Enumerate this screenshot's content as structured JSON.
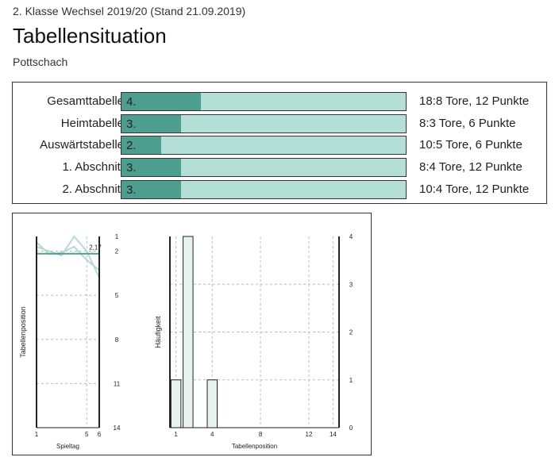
{
  "header": {
    "subtitle": "2. Klasse Wechsel 2019/20 (Stand 21.09.2019)",
    "title": "Tabellensituation",
    "team": "Pottschach"
  },
  "standings": [
    {
      "label": "Gesamttabelle",
      "position": "4.",
      "fill_fraction": 0.28,
      "stats": "18:8 Tore, 12 Punkte"
    },
    {
      "label": "Heimtabelle",
      "position": "3.",
      "fill_fraction": 0.21,
      "stats": "8:3 Tore, 6 Punkte"
    },
    {
      "label": "Auswärtstabelle",
      "position": "2.",
      "fill_fraction": 0.14,
      "stats": "10:5 Tore, 6 Punkte"
    },
    {
      "label": "1. Abschnitt",
      "position": "3.",
      "fill_fraction": 0.21,
      "stats": "8:4 Tore, 12 Punkte"
    },
    {
      "label": "2. Abschnitt",
      "position": "3.",
      "fill_fraction": 0.21,
      "stats": "10:4 Tore, 12 Punkte"
    }
  ],
  "colors": {
    "fill": "#4e9e90",
    "bar_bg": "#b3dfd6",
    "line_light": "#b7d9d2",
    "bar_chart_fill": "#e6f3ef"
  },
  "chart_data": [
    {
      "type": "line",
      "xlabel": "Spieltag",
      "ylabel": "Tabellenposition",
      "x_ticks": [
        1,
        5,
        6
      ],
      "y_ticks": [
        1,
        2,
        5,
        8,
        11,
        14
      ],
      "xlim": [
        1,
        6
      ],
      "ylim": [
        1,
        14
      ],
      "y_inverted": true,
      "average_value": 2.17,
      "average_label": "2,17",
      "series": [
        {
          "x": [
            1,
            2,
            3,
            4,
            5,
            6
          ],
          "values": [
            1.7,
            2.0,
            2.3,
            1.0,
            2.0,
            3.8
          ]
        },
        {
          "x": [
            1,
            2,
            3,
            4,
            5,
            6
          ],
          "values": [
            1.4,
            2.2,
            2.1,
            1.7,
            2.6,
            3.3
          ]
        }
      ]
    },
    {
      "type": "bar",
      "xlabel": "Tabellenposition",
      "ylabel": "Häufigkeit",
      "x_ticks": [
        1,
        4,
        8,
        12,
        14
      ],
      "y_ticks": [
        0,
        1,
        2,
        3,
        4
      ],
      "xlim": [
        1,
        14
      ],
      "ylim": [
        0,
        4
      ],
      "categories": [
        1,
        2,
        4
      ],
      "values": [
        1,
        4,
        1
      ]
    }
  ]
}
